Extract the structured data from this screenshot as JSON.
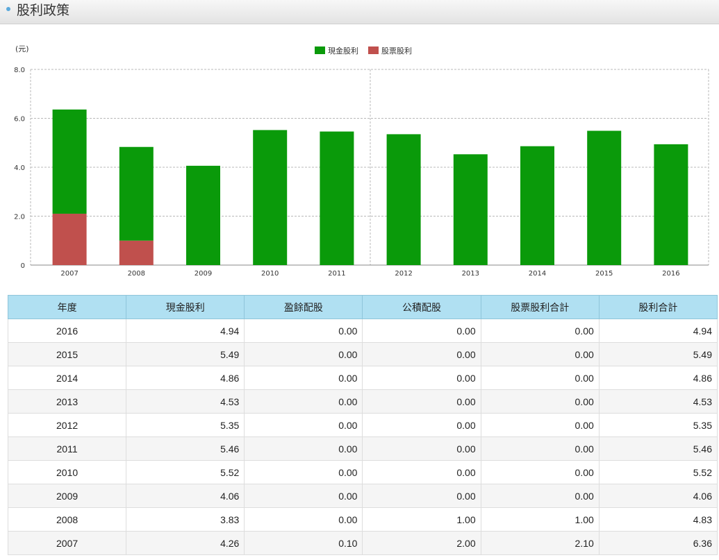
{
  "section": {
    "title": "股利政策"
  },
  "chart_data": {
    "type": "bar",
    "stacked": true,
    "ylabel": "(元)",
    "ylim": [
      0,
      8
    ],
    "yticks": [
      "0",
      "2.0",
      "4.0",
      "6.0",
      "8.0"
    ],
    "categories": [
      "2007",
      "2008",
      "2009",
      "2010",
      "2011",
      "2012",
      "2013",
      "2014",
      "2015",
      "2016"
    ],
    "series": [
      {
        "name": "股票股利",
        "color": "#c0504d",
        "values": [
          2.1,
          1.0,
          0,
          0,
          0,
          0,
          0,
          0,
          0,
          0
        ]
      },
      {
        "name": "現金股利",
        "color": "#0a9a0a",
        "values": [
          4.26,
          3.83,
          4.06,
          5.52,
          5.46,
          5.35,
          4.53,
          4.86,
          5.49,
          4.94
        ]
      }
    ],
    "legend": [
      "現金股利",
      "股票股利"
    ],
    "legend_position": "top-center",
    "grid": true
  },
  "table": {
    "headers": [
      "年度",
      "現金股利",
      "盈餘配股",
      "公積配股",
      "股票股利合計",
      "股利合計"
    ],
    "rows": [
      [
        "2016",
        "4.94",
        "0.00",
        "0.00",
        "0.00",
        "4.94"
      ],
      [
        "2015",
        "5.49",
        "0.00",
        "0.00",
        "0.00",
        "5.49"
      ],
      [
        "2014",
        "4.86",
        "0.00",
        "0.00",
        "0.00",
        "4.86"
      ],
      [
        "2013",
        "4.53",
        "0.00",
        "0.00",
        "0.00",
        "4.53"
      ],
      [
        "2012",
        "5.35",
        "0.00",
        "0.00",
        "0.00",
        "5.35"
      ],
      [
        "2011",
        "5.46",
        "0.00",
        "0.00",
        "0.00",
        "5.46"
      ],
      [
        "2010",
        "5.52",
        "0.00",
        "0.00",
        "0.00",
        "5.52"
      ],
      [
        "2009",
        "4.06",
        "0.00",
        "0.00",
        "0.00",
        "4.06"
      ],
      [
        "2008",
        "3.83",
        "0.00",
        "1.00",
        "1.00",
        "4.83"
      ],
      [
        "2007",
        "4.26",
        "0.10",
        "2.00",
        "2.10",
        "6.36"
      ]
    ]
  }
}
